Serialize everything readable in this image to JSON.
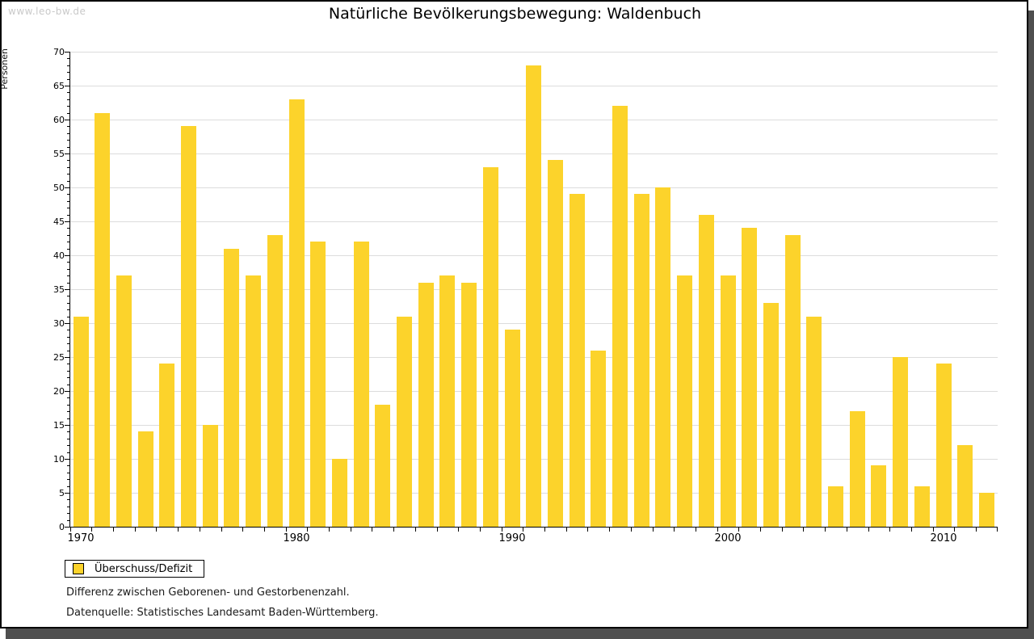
{
  "watermark": "www.leo-bw.de",
  "header": {
    "title": "Natürliche Bevölkerungsbewegung: Waldenbuch"
  },
  "legend": {
    "label": "Überschuss/Defizit",
    "swatch_color": "#fcd32b"
  },
  "notes": {
    "line1": "Differenz zwischen Geborenen- und Gestorbenenzahl.",
    "line2": "Datenquelle: Statistisches Landesamt Baden-Württemberg."
  },
  "colors": {
    "bar": "#fcd32b",
    "gridline": "#dcdcdc",
    "axis": "#000000",
    "watermark": "#c9c9c9",
    "frame_shadow": "#4f4f4f"
  },
  "chart_data": {
    "type": "bar",
    "title": "Natürliche Bevölkerungsbewegung: Waldenbuch",
    "xlabel": "",
    "ylabel": "Personen",
    "ylim": [
      0,
      70
    ],
    "ytick_step": 5,
    "ytick_minor_step": 1,
    "grid": "horizontal, every 5",
    "legend_entries": [
      "Überschuss/Defizit"
    ],
    "legend_position": "bottom-left, outside plot",
    "xtick_labels": [
      "1970",
      "1980",
      "1990",
      "2000",
      "2010"
    ],
    "categories": [
      1970,
      1971,
      1972,
      1973,
      1974,
      1975,
      1976,
      1977,
      1978,
      1979,
      1980,
      1981,
      1982,
      1983,
      1984,
      1985,
      1986,
      1987,
      1988,
      1989,
      1990,
      1991,
      1992,
      1993,
      1994,
      1995,
      1996,
      1997,
      1998,
      1999,
      2000,
      2001,
      2002,
      2003,
      2004,
      2005,
      2006,
      2007,
      2008,
      2009,
      2010,
      2011,
      2012
    ],
    "values": [
      31,
      61,
      37,
      14,
      24,
      59,
      15,
      41,
      37,
      43,
      63,
      42,
      10,
      42,
      18,
      31,
      36,
      37,
      36,
      53,
      29,
      68,
      54,
      49,
      26,
      62,
      49,
      50,
      37,
      46,
      37,
      44,
      33,
      43,
      31,
      6,
      17,
      9,
      25,
      6,
      24,
      12,
      5
    ]
  }
}
